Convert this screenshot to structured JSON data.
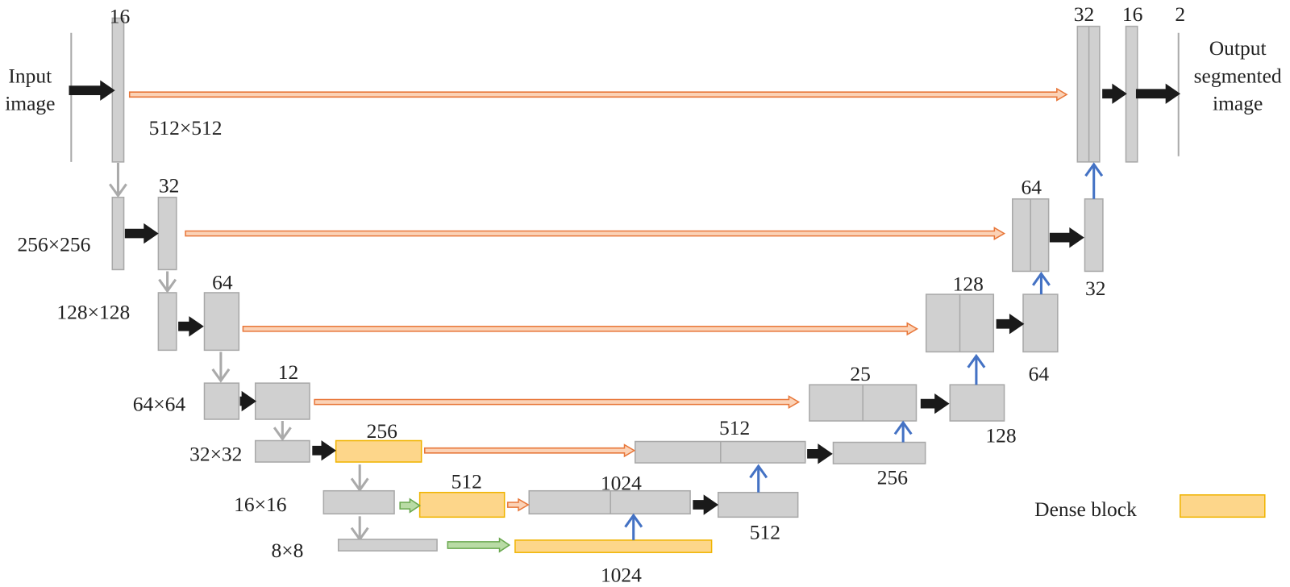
{
  "input_label": [
    "Input",
    "image"
  ],
  "output_label": [
    "Output",
    "segmented",
    "image"
  ],
  "resolutions": [
    "512×512",
    "256×256",
    "128×128",
    "64×64",
    "32×32",
    "16×16",
    "8×8"
  ],
  "channel_labels": [
    "16",
    "32",
    "16",
    "2",
    "32",
    "64",
    "32",
    "64",
    "128",
    "64",
    "12",
    "25",
    "128",
    "256",
    "512",
    "256",
    "512",
    "1024",
    "512",
    "1024"
  ],
  "legend": {
    "label": "Dense block"
  }
}
